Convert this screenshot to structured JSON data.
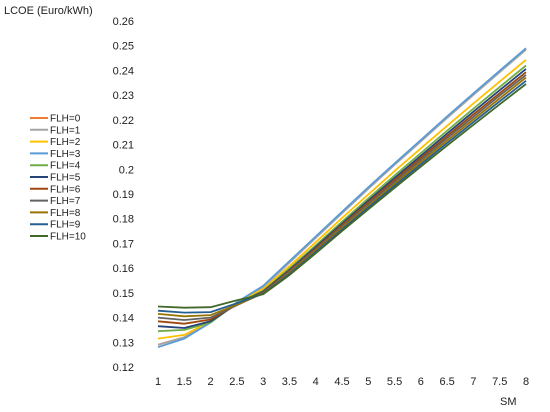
{
  "chart_data": {
    "type": "line",
    "ylabel": "LCOE (Euro/kWh)",
    "xlabel": "SM",
    "ylim": [
      0.12,
      0.26
    ],
    "yticks": [
      0.12,
      0.13,
      0.14,
      0.15,
      0.16,
      0.17,
      0.18,
      0.19,
      0.2,
      0.21,
      0.22,
      0.23,
      0.24,
      0.25,
      0.26
    ],
    "ytick_labels": [
      "0.12",
      "0.13",
      "0.14",
      "0.15",
      "0.16",
      "0.17",
      "0.18",
      "0.19",
      "0.2",
      "0.21",
      "0.22",
      "0.23",
      "0.24",
      "0.25",
      "0.26"
    ],
    "x": [
      1,
      1.5,
      2,
      2.5,
      3,
      3.5,
      4,
      4.5,
      5,
      5.5,
      6,
      6.5,
      7,
      7.5,
      8
    ],
    "xtick_labels": [
      "1",
      "1.5",
      "2",
      "2.5",
      "3",
      "3.5",
      "4",
      "4.5",
      "5",
      "5.5",
      "6",
      "6.5",
      "7",
      "7.5",
      "8"
    ],
    "grid": false,
    "legend_position": "left",
    "series": [
      {
        "name": "FLH=0",
        "color": "#ED7D31",
        "values": [
          0.129,
          0.132,
          0.138,
          0.146,
          0.1525,
          0.1625,
          0.1725,
          0.1825,
          0.1925,
          0.2022,
          0.2117,
          0.2212,
          0.2305,
          0.2397,
          0.2488
        ]
      },
      {
        "name": "FLH=1",
        "color": "#A5A5A5",
        "values": [
          0.129,
          0.132,
          0.138,
          0.146,
          0.1522,
          0.1622,
          0.1722,
          0.1822,
          0.1921,
          0.2018,
          0.2113,
          0.2208,
          0.2301,
          0.2393,
          0.2484
        ]
      },
      {
        "name": "FLH=2",
        "color": "#FFC000",
        "values": [
          0.1315,
          0.133,
          0.1385,
          0.146,
          0.1515,
          0.1608,
          0.1705,
          0.1803,
          0.1898,
          0.1993,
          0.2085,
          0.2176,
          0.2266,
          0.2355,
          0.2443
        ]
      },
      {
        "name": "FLH=3",
        "color": "#5B9BD5",
        "values": [
          0.128,
          0.1315,
          0.138,
          0.1462,
          0.1528,
          0.1628,
          0.1728,
          0.1828,
          0.1927,
          0.2024,
          0.2119,
          0.2214,
          0.2307,
          0.2399,
          0.249
        ]
      },
      {
        "name": "FLH=4",
        "color": "#70AD47",
        "values": [
          0.1345,
          0.135,
          0.138,
          0.1458,
          0.1508,
          0.1598,
          0.1692,
          0.1788,
          0.1882,
          0.1975,
          0.2066,
          0.2156,
          0.2245,
          0.2333,
          0.242
        ]
      },
      {
        "name": "FLH=5",
        "color": "#264478",
        "values": [
          0.1365,
          0.1358,
          0.1385,
          0.1455,
          0.1505,
          0.1592,
          0.1685,
          0.178,
          0.1873,
          0.1965,
          0.2055,
          0.2145,
          0.2233,
          0.232,
          0.2406
        ]
      },
      {
        "name": "FLH=6",
        "color": "#9E480E",
        "values": [
          0.1385,
          0.1375,
          0.1392,
          0.1452,
          0.1502,
          0.1588,
          0.168,
          0.1774,
          0.1866,
          0.1957,
          0.2046,
          0.2135,
          0.2222,
          0.2308,
          0.2393
        ]
      },
      {
        "name": "FLH=7",
        "color": "#636363",
        "values": [
          0.14,
          0.139,
          0.14,
          0.145,
          0.15,
          0.1584,
          0.1675,
          0.1768,
          0.1859,
          0.1949,
          0.2038,
          0.2126,
          0.2212,
          0.2298,
          0.2382
        ]
      },
      {
        "name": "FLH=8",
        "color": "#997300",
        "values": [
          0.1415,
          0.1405,
          0.141,
          0.1452,
          0.1498,
          0.158,
          0.167,
          0.1762,
          0.1852,
          0.1941,
          0.2029,
          0.2116,
          0.2202,
          0.2287,
          0.2371
        ]
      },
      {
        "name": "FLH=9",
        "color": "#255E91",
        "values": [
          0.1428,
          0.142,
          0.1422,
          0.1458,
          0.1496,
          0.1576,
          0.1665,
          0.1756,
          0.1845,
          0.1933,
          0.202,
          0.2106,
          0.2191,
          0.2275,
          0.2358
        ]
      },
      {
        "name": "FLH=10",
        "color": "#43682B",
        "values": [
          0.1445,
          0.144,
          0.1442,
          0.147,
          0.1494,
          0.1572,
          0.166,
          0.175,
          0.1838,
          0.1925,
          0.2011,
          0.2096,
          0.218,
          0.2263,
          0.2345
        ]
      }
    ]
  }
}
